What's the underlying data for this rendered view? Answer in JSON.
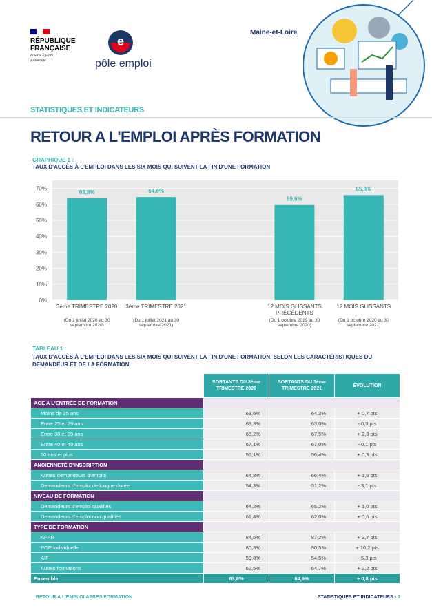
{
  "header": {
    "republic": "RÉPUBLIQUE FRANÇAISE",
    "motto": "Liberté Égalité Fraternité",
    "brand": "pôle emploi",
    "department": "Maine-et-Loire",
    "section": "STATISTIQUES ET INDICATEURS",
    "title": "RETOUR A L'EMPLOI APRÈS FORMATION"
  },
  "chart_data": {
    "type": "bar",
    "label": "GRAPHIQUE 1 :",
    "title": "TAUX D'ACCÈS À L'EMPLOI DANS LES SIX MOIS QUI SUIVENT LA FIN D'UNE FORMATION",
    "categories": [
      "3ème TRIMESTRE 2020",
      "3ème TRIMESTRE 2021",
      null,
      "12 MOIS GLISSANTS PRÉCÉDENTS",
      "12 MOIS GLISSANTS"
    ],
    "category_notes": [
      "(Du 1 juillet 2020 au 30 septembre 2020)",
      "(Du 1 juillet 2021 au 30 septembre 2021)",
      null,
      "(Du 1 octobre 2019 au 30 septembre 2020)",
      "(Du 1 octobre 2020 au 30 septembre 2021)"
    ],
    "values": [
      63.8,
      64.6,
      null,
      59.6,
      65.8
    ],
    "value_labels": [
      "63,8%",
      "64,6%",
      null,
      "59,6%",
      "65,8%"
    ],
    "color": "#36b6b4",
    "ylim": [
      0,
      75
    ],
    "yticks": [
      {
        "value": 0,
        "label": "0%"
      },
      {
        "value": 10,
        "label": "10%"
      },
      {
        "value": 20,
        "label": "20%"
      },
      {
        "value": 30,
        "label": "30%"
      },
      {
        "value": 40,
        "label": "40%"
      },
      {
        "value": 50,
        "label": "50%"
      },
      {
        "value": 60,
        "label": "60%"
      },
      {
        "value": 70,
        "label": "70%"
      }
    ],
    "grid": true
  },
  "table": {
    "label": "TABLEAU 1 :",
    "title": "TAUX D'ACCÈS À L'EMPLOI DANS LES SIX MOIS QUI SUIVENT LA FIN D'UNE FORMATION, SELON LES CARACTÉRISTIQUES DU DEMANDEUR ET DE LA FORMATION",
    "columns": [
      "SORTANTS DU 3ème TRIMESTRE 2020",
      "SORTANTS DU 3ème TRIMESTRE 2021",
      "ÉVOLUTION"
    ],
    "sections": [
      {
        "title": "AGE A L'ENTRÉE DE FORMATION",
        "rows": [
          [
            "Moins de 25 ans",
            "63,6%",
            "64,3%",
            "+ 0,7 pts"
          ],
          [
            "Entre 25 et 29 ans",
            "63,3%",
            "63,0%",
            "- 0,3 pts"
          ],
          [
            "Entre 30 et 39 ans",
            "65,2%",
            "67,5%",
            "+ 2,3 pts"
          ],
          [
            "Entre 40 et 49 ans",
            "67,1%",
            "67,0%",
            "- 0,1 pts"
          ],
          [
            "50 ans et plus",
            "56,1%",
            "56,4%",
            "+ 0,3 pts"
          ]
        ]
      },
      {
        "title": "ANCIENNETÉ D'INSCRIPTION",
        "rows": [
          [
            "Autres demandeurs d'emploi",
            "64,8%",
            "66,4%",
            "+ 1,6 pts"
          ],
          [
            "Demandeurs d'emploi de longue durée",
            "54,3%",
            "51,2%",
            "- 3,1 pts"
          ]
        ]
      },
      {
        "title": "NIVEAU DE FORMATION",
        "rows": [
          [
            "Demandeurs d'emploi qualifiés",
            "64,2%",
            "65,2%",
            "+ 1,0 pts"
          ],
          [
            "Demandeurs d'emploi non qualifiés",
            "61,4%",
            "62,0%",
            "+ 0,6 pts"
          ]
        ]
      },
      {
        "title": "TYPE DE FORMATION",
        "rows": [
          [
            "AFPR",
            "84,5%",
            "87,2%",
            "+ 2,7 pts"
          ],
          [
            "POE Individuelle",
            "80,3%",
            "90,5%",
            "+ 10,2 pts"
          ],
          [
            "AIF",
            "59,8%",
            "54,5%",
            "- 5,3 pts"
          ],
          [
            "Autres formations",
            "62,5%",
            "64,7%",
            "+ 2,2 pts"
          ]
        ]
      }
    ],
    "total": [
      "Ensemble",
      "63,8%",
      "64,6%",
      "+ 0,8 pts"
    ]
  },
  "footer": {
    "left": "RETOUR A L'EMPLOI APRES FORMATION",
    "right": "STATISTIQUES ET INDICATEURS -",
    "page": "1"
  }
}
